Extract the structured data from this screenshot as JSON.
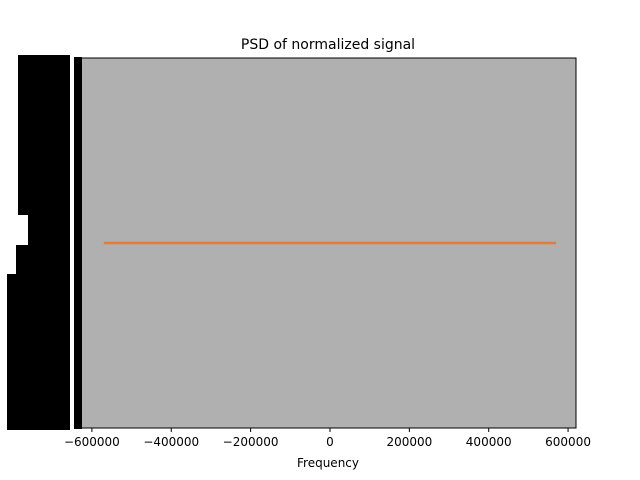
{
  "chart_data": {
    "type": "line",
    "title": "PSD of normalized signal",
    "xlabel": "Frequency",
    "ylabel": "",
    "xlim": [
      -630000,
      620000
    ],
    "x_ticks": [
      -600000,
      -400000,
      -200000,
      0,
      200000,
      400000,
      600000
    ],
    "x_tick_labels": [
      "−600000",
      "−400000",
      "−200000",
      "0",
      "200000",
      "400000",
      "600000"
    ],
    "grid": false,
    "legend": "none",
    "y_tick_labels_note": "densely overlapping unreadable tick labels rendered as solid black blocks",
    "series": [
      {
        "color": "#e07b39",
        "x": [
          -570000,
          570000
        ],
        "y_level": 0.5
      }
    ],
    "colors": {
      "plot_background": "#b0b0b0",
      "series_line": "#e07b39"
    }
  }
}
